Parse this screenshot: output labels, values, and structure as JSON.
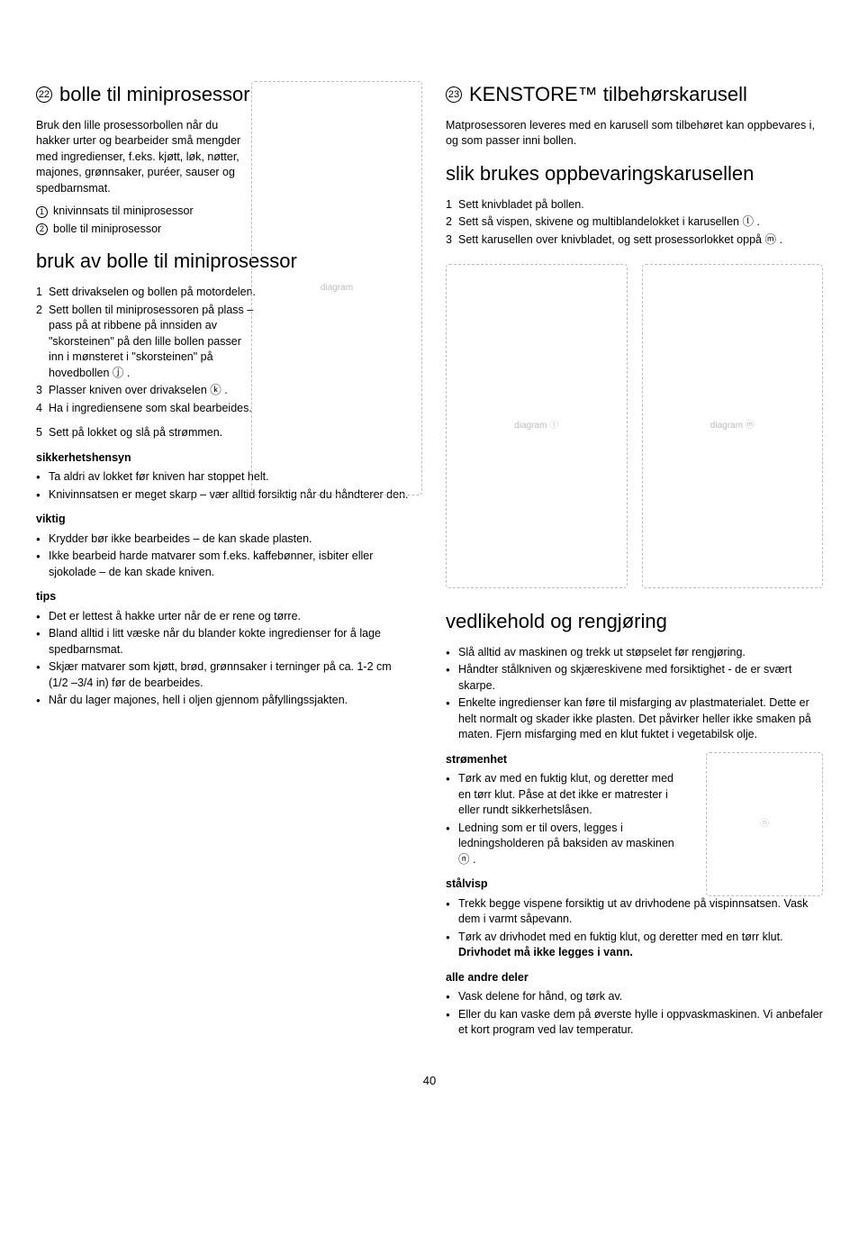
{
  "page_number": "40",
  "left": {
    "section1": {
      "num": "22",
      "title": "bolle til miniprosessor",
      "intro": "Bruk den lille prosessorbollen når du hakker urter og bearbeider små mengder med ingredienser, f.eks. kjøtt, løk, nøtter, majones, grønnsaker, puréer, sauser og spedbarnsmat.",
      "legend": [
        {
          "num": "1",
          "text": "knivinnsats til miniprosessor"
        },
        {
          "num": "2",
          "text": "bolle til miniprosessor"
        }
      ]
    },
    "section2": {
      "title": "bruk av bolle til miniprosessor",
      "steps": [
        {
          "n": "1",
          "text": "Sett drivakselen og bollen på motordelen."
        },
        {
          "n": "2",
          "text": "Sett bollen til miniprosessoren på plass – pass på at ribbene på innsiden av \"skorsteinen\" på den lille bollen passer inn i mønsteret i \"skorsteinen\" på hovedbollen ⓙ ."
        },
        {
          "n": "3",
          "text": "Plasser kniven over drivakselen ⓚ ."
        },
        {
          "n": "4",
          "text": "Ha i ingrediensene som skal bearbeides."
        },
        {
          "n": "5",
          "text": "Sett på lokket og slå på strømmen."
        }
      ],
      "safety_head": "sikkerhetshensyn",
      "safety": [
        "Ta aldri av lokket før kniven har stoppet helt.",
        "Knivinnsatsen er meget skarp – vær alltid forsiktig når du håndterer den."
      ],
      "important_head": "viktig",
      "important": [
        "Krydder bør ikke bearbeides – de kan skade plasten.",
        "Ikke bearbeid harde matvarer som f.eks. kaffebønner, isbiter eller sjokolade – de kan skade kniven."
      ],
      "tips_head": "tips",
      "tips": [
        "Det er lettest å hakke urter når de er rene og tørre.",
        "Bland alltid i litt væske når du blander kokte ingredienser for å lage spedbarnsmat.",
        "Skjær matvarer som kjøtt, brød, grønnsaker i terninger på ca. 1-2 cm (1/2 –3/4 in) før de bearbeides.",
        "Når du lager majones, hell i oljen gjennom påfyllingssjakten."
      ]
    }
  },
  "right": {
    "section1": {
      "num": "23",
      "title": "KENSTORE™ tilbehørskarusell",
      "intro": "Matprosessoren leveres med en karusell som tilbehøret kan oppbevares i, og som passer inni bollen."
    },
    "section2": {
      "title": "slik brukes oppbevaringskarusellen",
      "steps": [
        {
          "n": "1",
          "text": "Sett knivbladet på bollen."
        },
        {
          "n": "2",
          "text": "Sett så vispen, skivene og multiblandelokket i karusellen ⓛ ."
        },
        {
          "n": "3",
          "text": "Sett karusellen over knivbladet, og sett prosessorlokket oppå ⓜ ."
        }
      ]
    },
    "maint": {
      "title": "vedlikehold og rengjøring",
      "items": [
        "Slå alltid av maskinen og trekk ut støpselet før rengjøring.",
        "Håndter stålkniven og skjæreskivene med forsiktighet - de er svært skarpe.",
        "Enkelte ingredienser kan føre til misfarging av plastmaterialet. Dette er helt normalt og skader ikke plasten. Det påvirker heller ikke smaken på maten. Fjern misfarging med en klut fuktet i vegetabilsk olje."
      ],
      "power_head": "strømenhet",
      "power": [
        "Tørk av med en fuktig klut, og deretter med en tørr klut. Påse at det ikke er matrester i eller rundt sikkerhetslåsen.",
        "Ledning som er til overs, legges i ledningsholderen på baksiden av maskinen ⓝ ."
      ],
      "whisk_head": "stålvisp",
      "whisk": [
        "Trekk begge vispene forsiktig ut av drivhodene på vispinnsatsen. Vask dem i varmt såpevann."
      ],
      "whisk_last_pre": "Tørk av drivhodet med en fuktig klut, og deretter med en tørr klut. ",
      "whisk_last_bold": "Drivhodet må ikke legges i vann.",
      "other_head": "alle andre deler",
      "other": [
        "Vask delene for hånd, og tørk av.",
        "Eller du kan vaske dem på øverste hylle i oppvaskmaskinen. Vi anbefaler et kort program ved lav temperatur."
      ]
    }
  }
}
